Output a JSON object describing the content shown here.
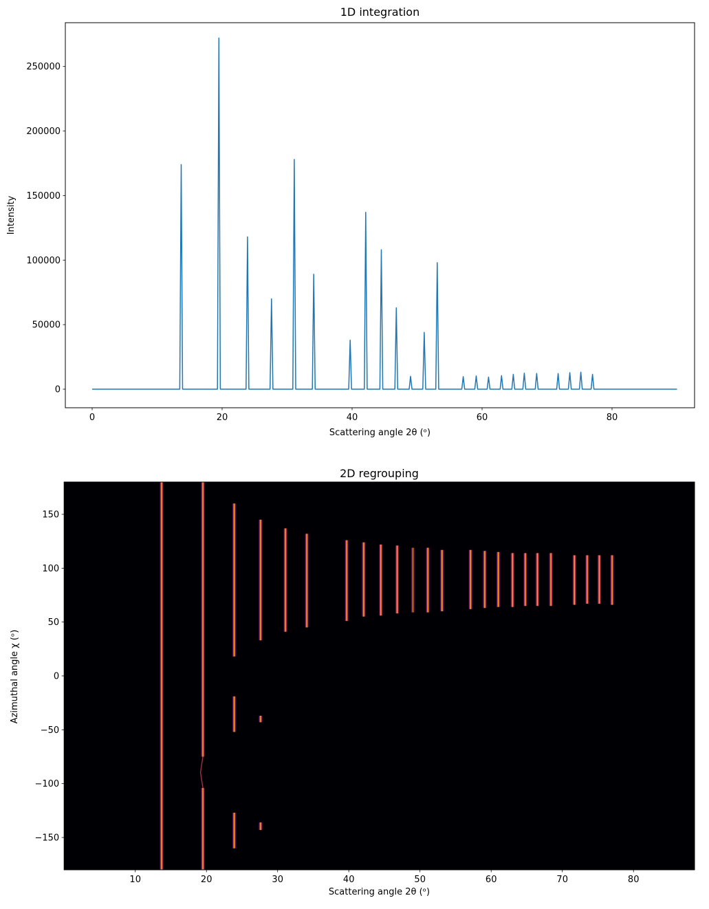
{
  "figure": {
    "background": "#ffffff",
    "spine_color": "#000000",
    "text_color": "#000000"
  },
  "chart_data": [
    {
      "type": "line",
      "title": "1D integration",
      "xlabel": "Scattering angle 2θ (ᵒ)",
      "ylabel": "Intensity",
      "line_color": "#1f77b4",
      "xlim": [
        -4.5,
        92.7
      ],
      "ylim": [
        -14400,
        283900
      ],
      "x_data_range": [
        0,
        90
      ],
      "xticks": [
        0,
        20,
        40,
        60,
        80
      ],
      "yticks": [
        0,
        50000,
        100000,
        150000,
        200000,
        250000
      ],
      "grid": false,
      "legend": null,
      "peaks": [
        {
          "two_theta": 13.7,
          "intensity": 174000
        },
        {
          "two_theta": 19.5,
          "intensity": 272000
        },
        {
          "two_theta": 23.9,
          "intensity": 118000
        },
        {
          "two_theta": 27.6,
          "intensity": 70000
        },
        {
          "two_theta": 31.1,
          "intensity": 178000
        },
        {
          "two_theta": 34.1,
          "intensity": 89000
        },
        {
          "two_theta": 39.7,
          "intensity": 38000
        },
        {
          "two_theta": 42.1,
          "intensity": 137000
        },
        {
          "two_theta": 44.5,
          "intensity": 108000
        },
        {
          "two_theta": 46.8,
          "intensity": 63000
        },
        {
          "two_theta": 49.0,
          "intensity": 10000
        },
        {
          "two_theta": 51.1,
          "intensity": 44000
        },
        {
          "two_theta": 53.1,
          "intensity": 98000
        },
        {
          "two_theta": 57.1,
          "intensity": 9700
        },
        {
          "two_theta": 59.1,
          "intensity": 10300
        },
        {
          "two_theta": 61.0,
          "intensity": 9400
        },
        {
          "two_theta": 63.0,
          "intensity": 10500
        },
        {
          "two_theta": 64.8,
          "intensity": 11500
        },
        {
          "two_theta": 66.5,
          "intensity": 12400
        },
        {
          "two_theta": 68.4,
          "intensity": 12200
        },
        {
          "two_theta": 71.7,
          "intensity": 12100
        },
        {
          "two_theta": 73.5,
          "intensity": 12800
        },
        {
          "two_theta": 75.2,
          "intensity": 13200
        },
        {
          "two_theta": 77.0,
          "intensity": 11500
        }
      ]
    },
    {
      "type": "heatmap",
      "title": "2D regrouping",
      "xlabel": "Scattering angle 2θ (ᵒ)",
      "ylabel": "Azimuthal angle χ (ᵒ)",
      "colormap": "inferno",
      "background_color": "#000004",
      "stripe_colors": {
        "core": "#fbc02a",
        "mid": "#f98e09",
        "edge": "#bc3754",
        "fringe": "#57106e"
      },
      "extent": {
        "two_theta": [
          0,
          88.6
        ],
        "chi": [
          -180,
          180
        ]
      },
      "xticks": [
        10,
        20,
        30,
        40,
        50,
        60,
        70,
        80
      ],
      "yticks": [
        150,
        100,
        50,
        0,
        -50,
        -100,
        -150
      ],
      "stripes": [
        {
          "two_theta": 13.7,
          "segments": [
            [
              -180,
              180
            ]
          ],
          "dim": false
        },
        {
          "two_theta": 19.5,
          "segments": [
            [
              -180,
              -104
            ],
            [
              -75,
              180
            ]
          ],
          "dim": false,
          "notch": [
            -104,
            -75
          ]
        },
        {
          "two_theta": 23.9,
          "segments": [
            [
              18,
              160
            ],
            [
              -52,
              -19
            ],
            [
              -160,
              -127
            ]
          ],
          "dim": false
        },
        {
          "two_theta": 27.6,
          "segments": [
            [
              33,
              145
            ],
            [
              -43,
              -37
            ],
            [
              -143,
              -136
            ]
          ],
          "dim": false
        },
        {
          "two_theta": 31.1,
          "segments": [
            [
              41,
              137
            ]
          ],
          "dim": false
        },
        {
          "two_theta": 34.1,
          "segments": [
            [
              45,
              132
            ]
          ],
          "dim": false
        },
        {
          "two_theta": 39.7,
          "segments": [
            [
              51,
              126
            ]
          ],
          "dim": false
        },
        {
          "two_theta": 42.1,
          "segments": [
            [
              55,
              124
            ]
          ],
          "dim": false
        },
        {
          "two_theta": 44.5,
          "segments": [
            [
              56,
              122
            ]
          ],
          "dim": false
        },
        {
          "two_theta": 46.8,
          "segments": [
            [
              58,
              121
            ]
          ],
          "dim": false
        },
        {
          "two_theta": 49.0,
          "segments": [
            [
              59,
              119
            ]
          ],
          "dim": true
        },
        {
          "two_theta": 51.1,
          "segments": [
            [
              59,
              119
            ]
          ],
          "dim": false
        },
        {
          "two_theta": 53.1,
          "segments": [
            [
              60,
              117
            ]
          ],
          "dim": false
        },
        {
          "two_theta": 57.1,
          "segments": [
            [
              62,
              117
            ]
          ],
          "dim": false
        },
        {
          "two_theta": 59.1,
          "segments": [
            [
              63,
              116
            ]
          ],
          "dim": false
        },
        {
          "two_theta": 61.0,
          "segments": [
            [
              64,
              115
            ]
          ],
          "dim": false
        },
        {
          "two_theta": 63.0,
          "segments": [
            [
              64,
              114
            ]
          ],
          "dim": false
        },
        {
          "two_theta": 64.8,
          "segments": [
            [
              65,
              114
            ]
          ],
          "dim": false
        },
        {
          "two_theta": 66.5,
          "segments": [
            [
              65,
              114
            ]
          ],
          "dim": false
        },
        {
          "two_theta": 68.4,
          "segments": [
            [
              65,
              114
            ]
          ],
          "dim": false
        },
        {
          "two_theta": 71.7,
          "segments": [
            [
              66,
              112
            ]
          ],
          "dim": false
        },
        {
          "two_theta": 73.5,
          "segments": [
            [
              67,
              112
            ]
          ],
          "dim": false
        },
        {
          "two_theta": 75.2,
          "segments": [
            [
              67,
              112
            ]
          ],
          "dim": false
        },
        {
          "two_theta": 77.0,
          "segments": [
            [
              66,
              112
            ]
          ],
          "dim": false
        }
      ]
    }
  ]
}
